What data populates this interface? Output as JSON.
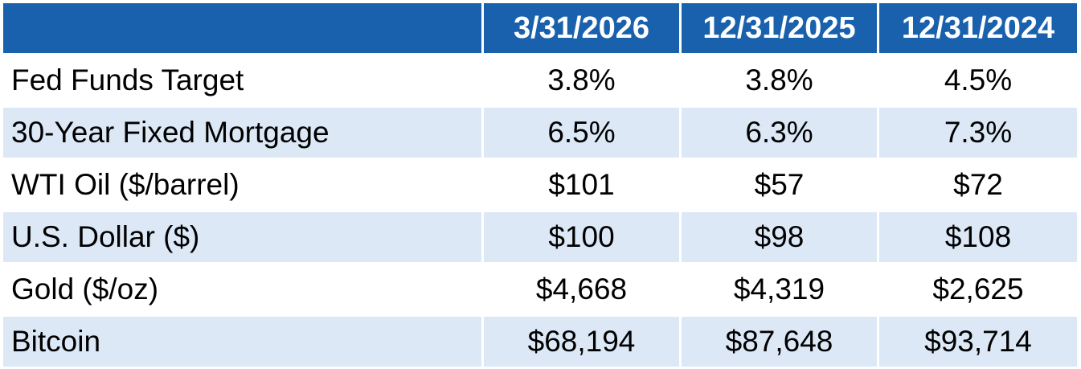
{
  "table": {
    "header": [
      "",
      "3/31/2026",
      "12/31/2025",
      "12/31/2024"
    ],
    "rows": [
      {
        "label": "Fed Funds Target",
        "values": [
          "3.8%",
          "3.8%",
          "4.5%"
        ]
      },
      {
        "label": "30-Year Fixed Mortgage",
        "values": [
          "6.5%",
          "6.3%",
          "7.3%"
        ]
      },
      {
        "label": "WTI Oil ($/barrel)",
        "values": [
          "$101",
          "$57",
          "$72"
        ]
      },
      {
        "label": "U.S. Dollar ($)",
        "values": [
          "$100",
          "$98",
          "$108"
        ]
      },
      {
        "label": "Gold ($/oz)",
        "values": [
          "$4,668",
          "$4,319",
          "$2,625"
        ]
      },
      {
        "label": "Bitcoin",
        "values": [
          "$68,194",
          "$87,648",
          "$93,714"
        ]
      }
    ]
  },
  "colors": {
    "header_bg": "#1a61ad",
    "header_text": "#ffffff",
    "alt_row_bg": "#dce8f6",
    "row_bg": "#ffffff"
  }
}
